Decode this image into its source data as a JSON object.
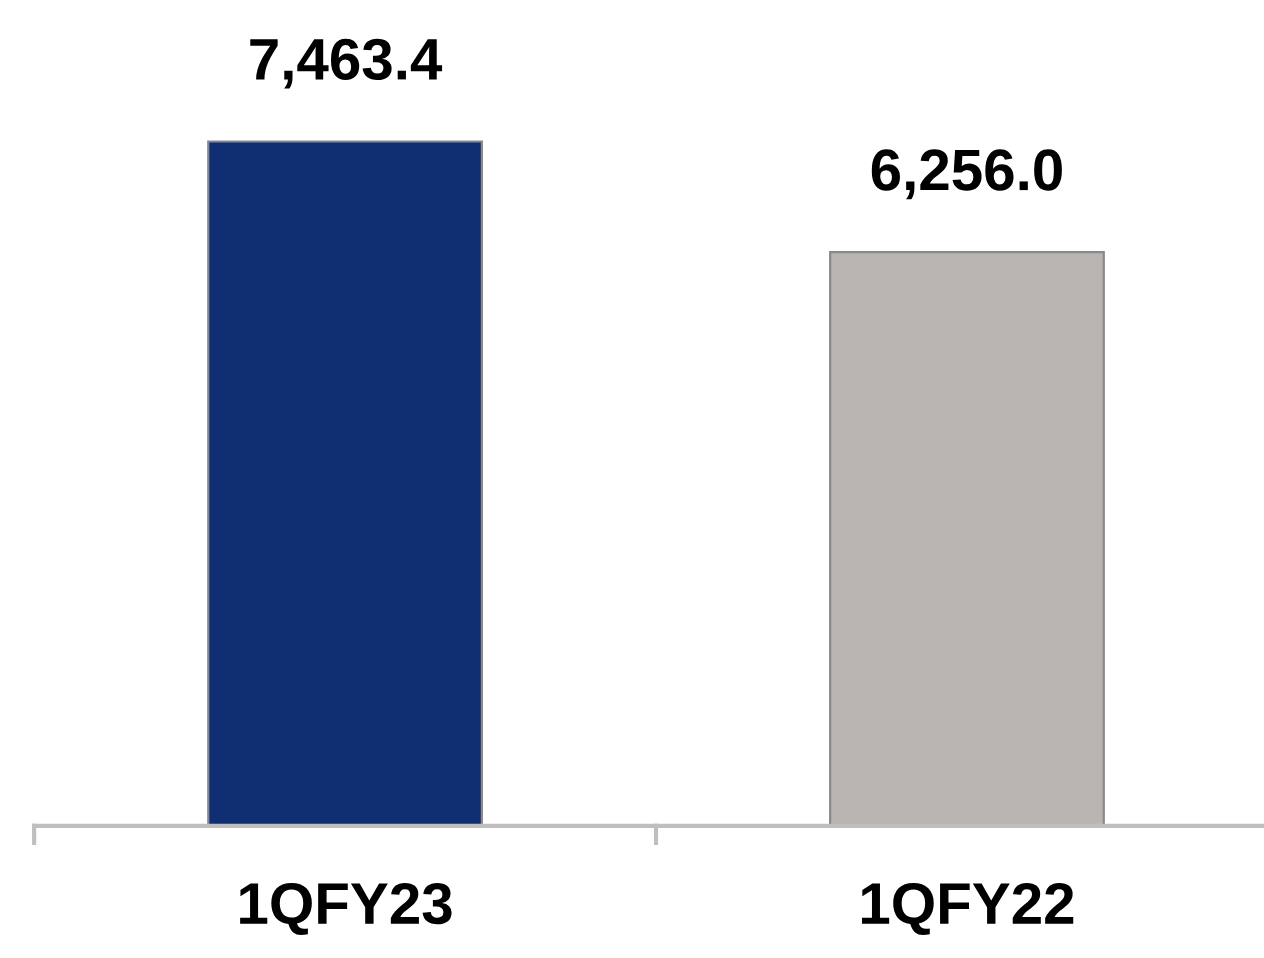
{
  "chart_data": {
    "type": "bar",
    "categories": [
      "1QFY23",
      "1QFY22"
    ],
    "values": [
      7463.4,
      6256.0
    ],
    "colors": [
      "#102f72",
      "#b9b5b0"
    ],
    "value_labels": [
      "7,463.4",
      "6,256.0"
    ],
    "grid": false,
    "legend": false
  }
}
